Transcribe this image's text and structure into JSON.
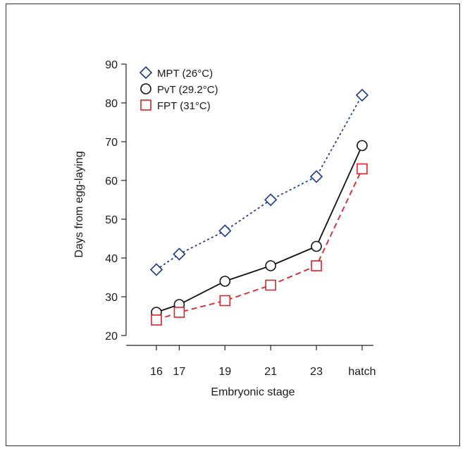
{
  "chart_data": {
    "type": "line",
    "xlabel": "Embryonic stage",
    "ylabel": "Days from egg-laying",
    "categories": [
      "16",
      "17",
      "19",
      "21",
      "23",
      "hatch"
    ],
    "x_positions": [
      16,
      17,
      19,
      21,
      23,
      25
    ],
    "ylim": [
      18,
      90
    ],
    "yticks": [
      20,
      30,
      40,
      50,
      60,
      70,
      80,
      90
    ],
    "grid": false,
    "legend_position": "top-left",
    "series": [
      {
        "name": "MPT (26°C)",
        "values": [
          37,
          41,
          47,
          55,
          61,
          82
        ],
        "color": "#1f3a93",
        "marker": "diamond",
        "line": "dotted"
      },
      {
        "name": "PvT (29.2°C)",
        "values": [
          26,
          28,
          34,
          38,
          43,
          69
        ],
        "color": "#111111",
        "marker": "circle",
        "line": "solid"
      },
      {
        "name": "FPT (31°C)",
        "values": [
          24,
          26,
          29,
          33,
          38,
          63
        ],
        "color": "#e0202a",
        "marker": "square",
        "line": "dashed"
      }
    ]
  }
}
